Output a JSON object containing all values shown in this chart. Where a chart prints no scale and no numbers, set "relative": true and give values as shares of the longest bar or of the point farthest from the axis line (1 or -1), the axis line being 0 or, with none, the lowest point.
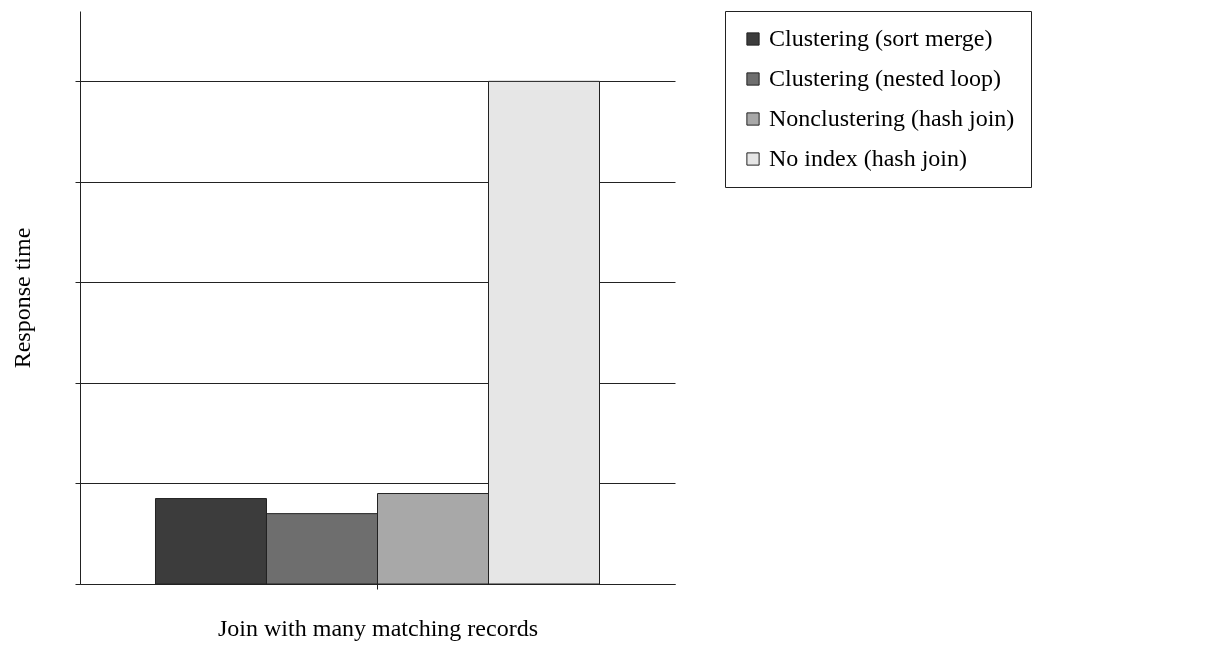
{
  "chart_data": {
    "type": "bar",
    "relative": true,
    "xlabel": "Join with many matching records",
    "ylabel": "Response time",
    "categories": [
      null
    ],
    "series": [
      {
        "name": "Clustering (sort merge)",
        "color": "#3c3c3c",
        "values": [
          0.17
        ]
      },
      {
        "name": "Clustering (nested loop)",
        "color": "#6e6e6e",
        "values": [
          0.14
        ]
      },
      {
        "name": "Nonclustering (hash join)",
        "color": "#a8a8a8",
        "values": [
          0.18
        ]
      },
      {
        "name": "No index (hash join)",
        "color": "#e6e6e6",
        "values": [
          1
        ]
      }
    ],
    "grid": true,
    "legend": "right"
  }
}
